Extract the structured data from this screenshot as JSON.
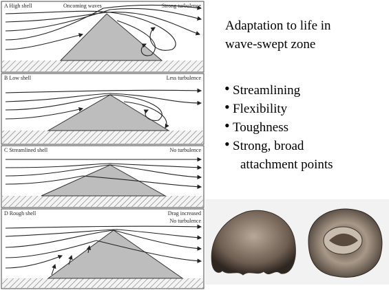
{
  "diagram": {
    "panels": [
      {
        "label": "A High shell",
        "notes": [
          "Oncoming waves",
          "Strong turbulence"
        ]
      },
      {
        "label": "B Low shell",
        "notes": [
          "Less turbulence"
        ]
      },
      {
        "label": "C Streamlined shell",
        "notes": [
          "No turbulence"
        ]
      },
      {
        "label": "D Rough shell",
        "notes": [
          "Drag increased",
          "No turbulence"
        ]
      }
    ]
  },
  "text": {
    "title": [
      "Adaptation to life in",
      "wave-swept zone"
    ],
    "bullets": [
      "Streamlining",
      "Flexibility",
      "Toughness",
      "Strong, broad attachment points"
    ]
  }
}
